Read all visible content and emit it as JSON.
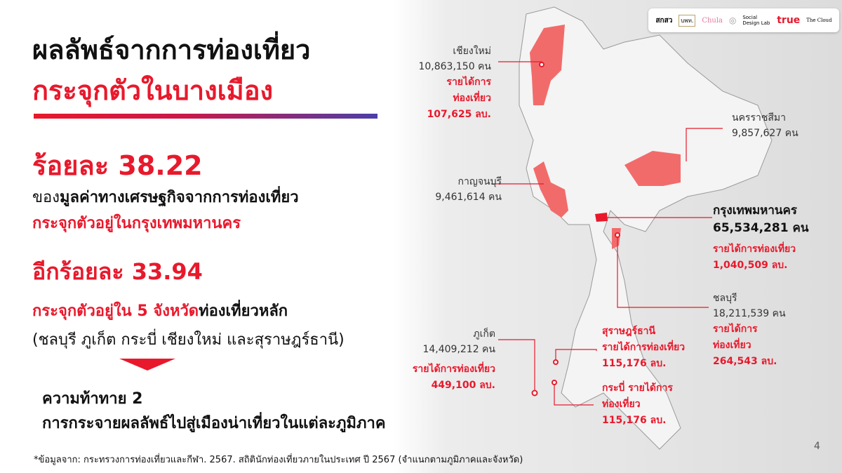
{
  "logos": [
    "สกสว",
    "บพท.",
    "Chula",
    "ตราสัญลักษณ์",
    "Social Design Lab",
    "true",
    "The Cloud"
  ],
  "title": {
    "line1": "ผลลัพธ์จากการท่องเที่ยว",
    "line2": "กระจุกตัวในบางเมือง"
  },
  "colors": {
    "accent": "#e8192c",
    "gradient_end": "#4a3fa8",
    "highlight": "#f26b6b"
  },
  "stat1": {
    "value": "ร้อยละ 38.22",
    "line1_prefix": "ของ",
    "line1_bold": "มูลค่าทางเศรษฐกิจจากการท่องเที่ยว",
    "line2": "กระจุกตัวอยู่ในกรุงเทพมหานคร"
  },
  "stat2": {
    "value": "อีกร้อยละ 33.94",
    "line1_red": "กระจุกตัวอยู่ใน 5 จังหวัด",
    "line1_black": "ท่องเที่ยวหลัก",
    "line2": "(ชลบุรี ภูเก็ต กระบี่ เชียงใหม่ และสุราษฎร์ธานี)"
  },
  "challenge": {
    "title": "ความท้าทาย 2",
    "text": "การกระจายผลลัพธ์ไปสู่เมืองน่าเที่ยวในแต่ละภูมิภาค"
  },
  "footnote": "*ข้อมูลจาก: กระทรวงการท่องเที่ยวและกีฬา. 2567. สถิตินักท่องเที่ยวภายในประเทศ ปี 2567 (จำแนกตามภูมิภาคและจังหวัด)",
  "page_number": "4",
  "provinces": {
    "chiangmai": {
      "name": "เชียงใหม่",
      "visitors": "10,863,150 คน",
      "rev1": "รายได้การ",
      "rev2": "ท่องเที่ยว",
      "rev3": "107,625 ลบ."
    },
    "korat": {
      "name": "นครราชสีมา",
      "visitors": "9,857,627 คน"
    },
    "kanchanaburi": {
      "name": "กาญจนบุรี",
      "visitors": "9,461,614 คน"
    },
    "bangkok": {
      "name": "กรุงเทพมหานคร",
      "visitors": "65,534,281 คน",
      "rev1": "รายได้การท่องเที่ยว",
      "rev2": "1,040,509 ลบ."
    },
    "chonburi": {
      "name": "ชลบุรี",
      "visitors": "18,211,539 คน",
      "rev1": "รายได้การ",
      "rev2": "ท่องเที่ยว",
      "rev3": "264,543 ลบ."
    },
    "phuket": {
      "name": "ภูเก็ต",
      "visitors": "14,409,212 คน",
      "rev1": "รายได้การท่องเที่ยว",
      "rev2": "449,100 ลบ."
    },
    "surat": {
      "name": "สุราษฎร์ธานี",
      "rev1": "รายได้การท่องเที่ยว",
      "rev2": "115,176 ลบ."
    },
    "krabi": {
      "name": "กระบี่ รายได้การ",
      "rev1": "ท่องเที่ยว",
      "rev2": "115,176 ลบ."
    }
  }
}
